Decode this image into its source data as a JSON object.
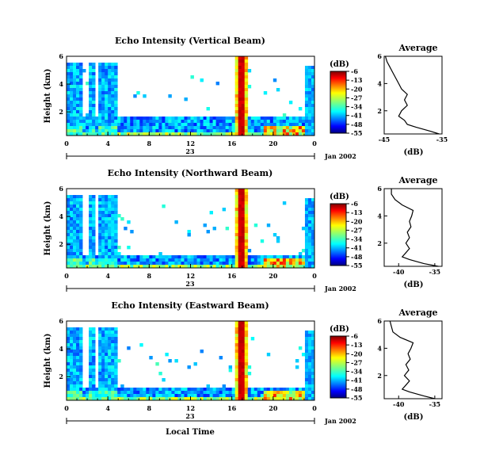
{
  "figure": {
    "xlabel": "Local Time",
    "date_label": "Jan 2002",
    "day_label": "23",
    "colorbar_unit": "(dB)",
    "profile_title": "Average",
    "profile_xlabel": "(dB)"
  },
  "chart_data": [
    {
      "type": "heatmap",
      "title": "Echo Intensity (Vertical Beam)",
      "ylabel": "Height (km)",
      "xlabel": "Local Time",
      "x_ticks": [
        "0",
        "4",
        "8",
        "12",
        "16",
        "20",
        "0"
      ],
      "y_ticks": [
        "2",
        "4",
        "6"
      ],
      "xlim": [
        0,
        24
      ],
      "ylim": [
        0.3,
        6.0
      ],
      "colorbar": {
        "unit": "(dB)",
        "ticks": [
          "-6",
          "-13",
          "-20",
          "-27",
          "-34",
          "-41",
          "-48",
          "-55"
        ],
        "range": [
          -55,
          -6
        ]
      },
      "profile": {
        "title": "Average",
        "xlabel": "(dB)",
        "x_ticks": [
          "-45",
          "-35"
        ],
        "xlim": [
          -45,
          -35
        ],
        "y_ticks": [
          "2",
          "4",
          "6"
        ],
        "ylim": [
          0.3,
          6.0
        ],
        "height": [
          0.3,
          0.5,
          0.8,
          1.0,
          1.3,
          1.6,
          2.0,
          2.4,
          2.8,
          3.2,
          3.6,
          4.0,
          4.4,
          4.8,
          5.2,
          5.6,
          6.0
        ],
        "value": [
          -35.5,
          -37.0,
          -39.5,
          -41.0,
          -41.5,
          -42.5,
          -42.0,
          -41.0,
          -41.5,
          -41.0,
          -42.0,
          -42.5,
          -43.0,
          -43.5,
          -44.0,
          -44.5,
          -44.8
        ]
      }
    },
    {
      "type": "heatmap",
      "title": "Echo Intensity (Northward Beam)",
      "ylabel": "Height (km)",
      "xlabel": "Local Time",
      "x_ticks": [
        "0",
        "4",
        "8",
        "12",
        "16",
        "20",
        "0"
      ],
      "y_ticks": [
        "2",
        "4",
        "6"
      ],
      "xlim": [
        0,
        24
      ],
      "ylim": [
        0.3,
        6.0
      ],
      "colorbar": {
        "unit": "(dB)",
        "ticks": [
          "-6",
          "-13",
          "-20",
          "-27",
          "-34",
          "-41",
          "-48",
          "-55"
        ],
        "range": [
          -55,
          -6
        ]
      },
      "profile": {
        "title": "Average",
        "xlabel": "(dB)",
        "x_ticks": [
          "-40",
          "-35"
        ],
        "xlim": [
          -42,
          -34
        ],
        "y_ticks": [
          "2",
          "4",
          "6"
        ],
        "ylim": [
          0.3,
          6.0
        ],
        "height": [
          0.3,
          0.5,
          0.8,
          1.0,
          1.3,
          1.6,
          2.0,
          2.4,
          2.8,
          3.2,
          3.6,
          4.0,
          4.4,
          4.8,
          5.2,
          5.6,
          6.0
        ],
        "value": [
          -34.5,
          -36.5,
          -38.5,
          -39.5,
          -39.0,
          -38.5,
          -39.0,
          -38.5,
          -38.8,
          -38.3,
          -38.5,
          -38.2,
          -38.0,
          -39.5,
          -40.5,
          -41.0,
          -41.0
        ]
      }
    },
    {
      "type": "heatmap",
      "title": "Echo Intensity (Eastward Beam)",
      "ylabel": "Height (km)",
      "xlabel": "Local Time",
      "x_ticks": [
        "0",
        "4",
        "8",
        "12",
        "16",
        "20",
        "0"
      ],
      "y_ticks": [
        "2",
        "4",
        "6"
      ],
      "xlim": [
        0,
        24
      ],
      "ylim": [
        0.3,
        6.0
      ],
      "colorbar": {
        "unit": "(dB)",
        "ticks": [
          "-6",
          "-13",
          "-20",
          "-27",
          "-34",
          "-41",
          "-48",
          "-55"
        ],
        "range": [
          -55,
          -6
        ]
      },
      "profile": {
        "title": "Average",
        "xlabel": "(dB)",
        "x_ticks": [
          "-40",
          "-35"
        ],
        "xlim": [
          -42,
          -34
        ],
        "y_ticks": [
          "2",
          "4",
          "6"
        ],
        "ylim": [
          0.3,
          6.0
        ],
        "height": [
          0.3,
          0.5,
          0.8,
          1.0,
          1.3,
          1.6,
          2.0,
          2.4,
          2.8,
          3.2,
          3.6,
          4.0,
          4.4,
          4.8,
          5.2,
          5.6,
          6.0
        ],
        "value": [
          -35.0,
          -36.5,
          -38.5,
          -39.5,
          -39.0,
          -38.5,
          -39.2,
          -38.6,
          -39.0,
          -38.4,
          -38.7,
          -38.3,
          -38.0,
          -39.8,
          -40.8,
          -41.0,
          -41.2
        ]
      }
    }
  ]
}
